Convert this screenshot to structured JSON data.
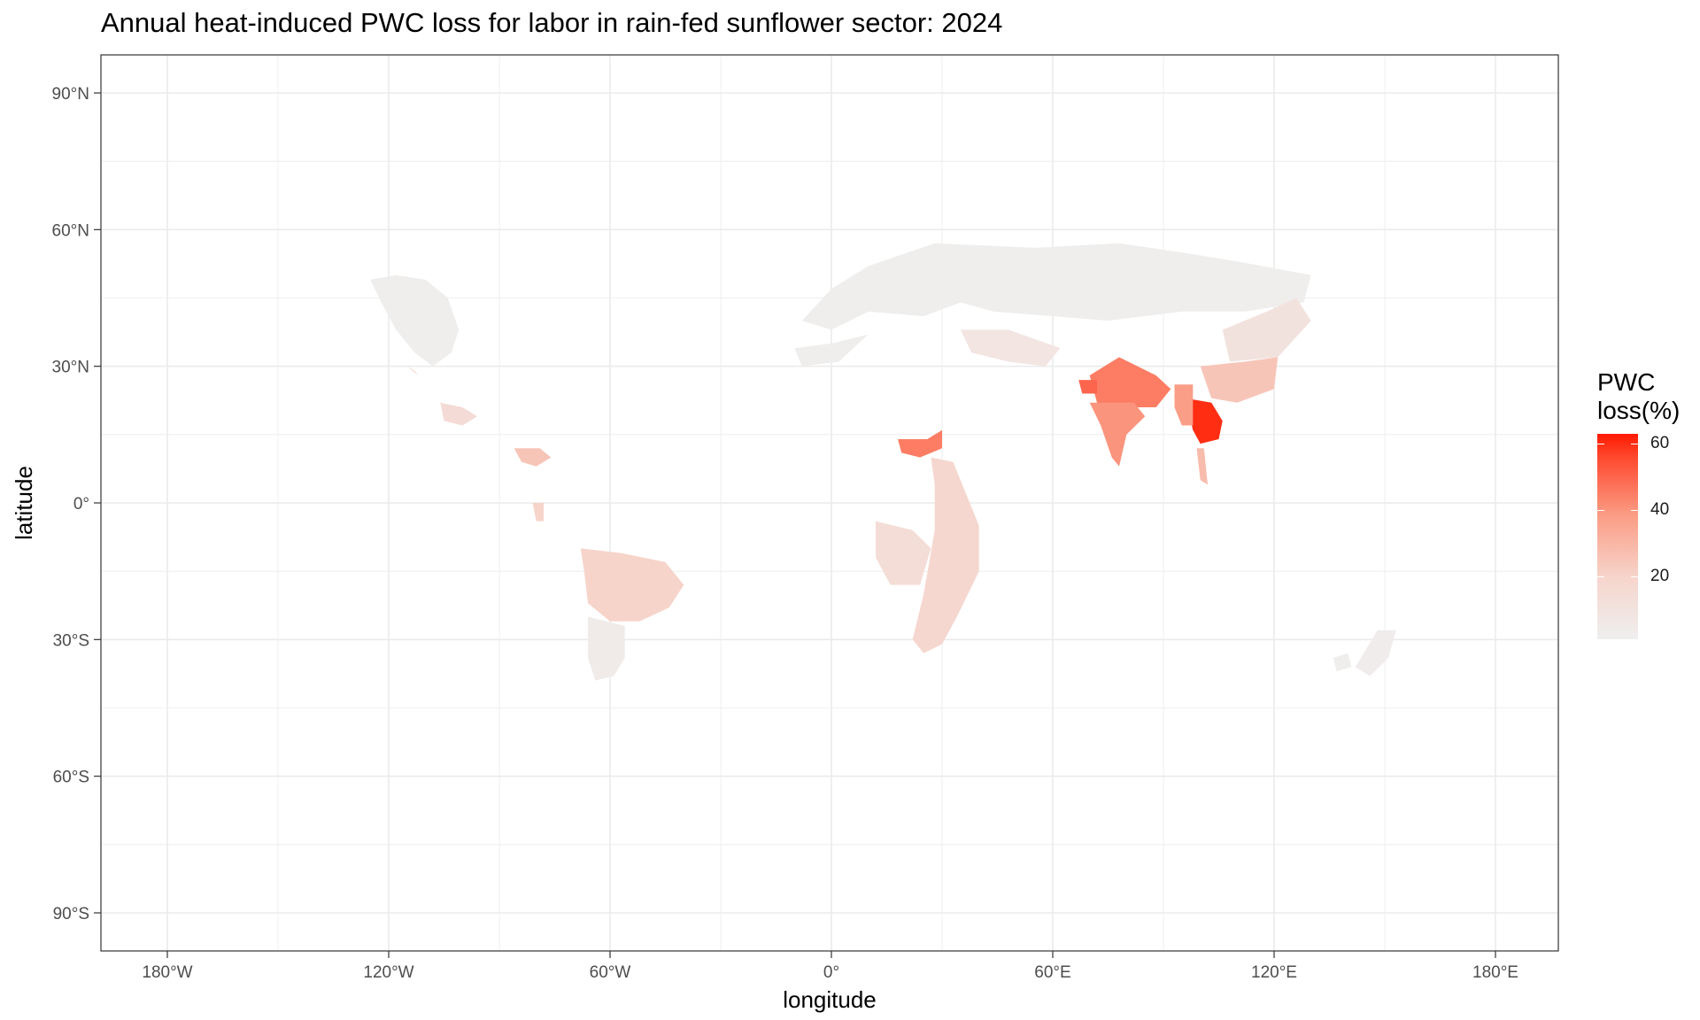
{
  "title": "Annual heat-induced PWC loss for labor in rain-fed sunflower sector: 2024",
  "x_axis": {
    "label": "longitude",
    "ticks": [
      {
        "value": -180,
        "label": "180°W"
      },
      {
        "value": -120,
        "label": "120°W"
      },
      {
        "value": -60,
        "label": "60°W"
      },
      {
        "value": 0,
        "label": "0°"
      },
      {
        "value": 60,
        "label": "60°E"
      },
      {
        "value": 120,
        "label": "120°E"
      },
      {
        "value": 180,
        "label": "180°E"
      }
    ]
  },
  "y_axis": {
    "label": "latitude",
    "ticks": [
      {
        "value": 90,
        "label": "90°N"
      },
      {
        "value": 60,
        "label": "60°N"
      },
      {
        "value": 30,
        "label": "30°N"
      },
      {
        "value": 0,
        "label": "0°"
      },
      {
        "value": -30,
        "label": "30°S"
      },
      {
        "value": -60,
        "label": "60°S"
      },
      {
        "value": -90,
        "label": "90°S"
      }
    ]
  },
  "legend": {
    "title_line1": "PWC",
    "title_line2": "loss(%)",
    "ticks": [
      {
        "value": 60,
        "label": "60"
      },
      {
        "value": 40,
        "label": "40"
      },
      {
        "value": 20,
        "label": "20"
      }
    ],
    "range": [
      1,
      63
    ]
  },
  "colors": {
    "low": "#efefef",
    "high": "#ff1a00",
    "grid": "#ebebeb",
    "panel_border": "#333333"
  },
  "regions": [
    {
      "name": "north-america-west",
      "value": 2,
      "points": [
        [
          -125,
          49
        ],
        [
          -118,
          50
        ],
        [
          -110,
          49
        ],
        [
          -104,
          45
        ],
        [
          -101,
          38
        ],
        [
          -103,
          33
        ],
        [
          -108,
          30
        ],
        [
          -113,
          33
        ],
        [
          -118,
          38
        ],
        [
          -122,
          44
        ]
      ]
    },
    {
      "name": "mexico",
      "value": 15,
      "points": [
        [
          -106,
          22
        ],
        [
          -100,
          21
        ],
        [
          -96,
          19
        ],
        [
          -100,
          17
        ],
        [
          -105,
          18
        ]
      ]
    },
    {
      "name": "baja-region",
      "value": 18,
      "points": [
        [
          -115,
          30
        ],
        [
          -112,
          28
        ],
        [
          -111,
          27
        ],
        [
          -113,
          29
        ]
      ]
    },
    {
      "name": "central-america",
      "value": 25,
      "points": [
        [
          -86,
          12
        ],
        [
          -79,
          12
        ],
        [
          -76,
          10
        ],
        [
          -80,
          8
        ],
        [
          -84,
          9
        ]
      ]
    },
    {
      "name": "ecuador-region",
      "value": 20,
      "points": [
        [
          -81,
          0
        ],
        [
          -78,
          0
        ],
        [
          -78,
          -4
        ],
        [
          -80,
          -4
        ]
      ]
    },
    {
      "name": "south-america-north",
      "value": 20,
      "points": [
        [
          -68,
          -10
        ],
        [
          -57,
          -11
        ],
        [
          -45,
          -13
        ],
        [
          -40,
          -18
        ],
        [
          -44,
          -23
        ],
        [
          -52,
          -26
        ],
        [
          -60,
          -26
        ],
        [
          -66,
          -22
        ],
        [
          -67,
          -15
        ]
      ]
    },
    {
      "name": "south-america-south",
      "value": 4,
      "points": [
        [
          -66,
          -25
        ],
        [
          -56,
          -27
        ],
        [
          -56,
          -34
        ],
        [
          -59,
          -38
        ],
        [
          -64,
          -39
        ],
        [
          -66,
          -34
        ]
      ]
    },
    {
      "name": "europe-russia",
      "value": 2,
      "points": [
        [
          -8,
          40
        ],
        [
          0,
          47
        ],
        [
          10,
          52
        ],
        [
          28,
          57
        ],
        [
          55,
          56
        ],
        [
          78,
          57
        ],
        [
          95,
          55
        ],
        [
          110,
          53
        ],
        [
          130,
          50
        ],
        [
          128,
          44
        ],
        [
          112,
          42
        ],
        [
          95,
          42
        ],
        [
          75,
          40
        ],
        [
          60,
          41
        ],
        [
          44,
          42
        ],
        [
          35,
          44
        ],
        [
          25,
          41
        ],
        [
          10,
          42
        ],
        [
          0,
          38
        ]
      ]
    },
    {
      "name": "middle-east",
      "value": 8,
      "points": [
        [
          35,
          38
        ],
        [
          48,
          38
        ],
        [
          62,
          34
        ],
        [
          58,
          30
        ],
        [
          48,
          31
        ],
        [
          38,
          33
        ]
      ]
    },
    {
      "name": "west-africa-sahel",
      "value": 45,
      "points": [
        [
          18,
          14
        ],
        [
          26,
          14
        ],
        [
          30,
          16
        ],
        [
          30,
          12
        ],
        [
          24,
          10
        ],
        [
          19,
          11
        ]
      ]
    },
    {
      "name": "east-africa",
      "value": 18,
      "points": [
        [
          27,
          10
        ],
        [
          33,
          9
        ],
        [
          36,
          3
        ],
        [
          40,
          -5
        ],
        [
          40,
          -15
        ],
        [
          34,
          -25
        ],
        [
          30,
          -31
        ],
        [
          25,
          -33
        ],
        [
          22,
          -30
        ],
        [
          25,
          -20
        ],
        [
          28,
          -6
        ],
        [
          28,
          4
        ]
      ]
    },
    {
      "name": "southern-central-africa",
      "value": 14,
      "points": [
        [
          12,
          -4
        ],
        [
          22,
          -6
        ],
        [
          27,
          -10
        ],
        [
          24,
          -18
        ],
        [
          16,
          -18
        ],
        [
          12,
          -12
        ]
      ]
    },
    {
      "name": "india-north",
      "value": 45,
      "points": [
        [
          70,
          28
        ],
        [
          78,
          32
        ],
        [
          88,
          28
        ],
        [
          92,
          25
        ],
        [
          88,
          21
        ],
        [
          80,
          21
        ],
        [
          72,
          22
        ]
      ]
    },
    {
      "name": "india-south",
      "value": 40,
      "points": [
        [
          70,
          22
        ],
        [
          82,
          22
        ],
        [
          85,
          19
        ],
        [
          80,
          15
        ],
        [
          78,
          8
        ],
        [
          76,
          10
        ],
        [
          73,
          17
        ]
      ]
    },
    {
      "name": "pakistan-patch",
      "value": 50,
      "points": [
        [
          67,
          27
        ],
        [
          72,
          27
        ],
        [
          72,
          24
        ],
        [
          68,
          24
        ]
      ]
    },
    {
      "name": "southeast-asia",
      "value": 60,
      "points": [
        [
          96,
          23
        ],
        [
          103,
          22
        ],
        [
          106,
          18
        ],
        [
          105,
          14
        ],
        [
          100,
          13
        ],
        [
          98,
          16
        ]
      ]
    },
    {
      "name": "myanmar",
      "value": 38,
      "points": [
        [
          93,
          26
        ],
        [
          98,
          26
        ],
        [
          98,
          17
        ],
        [
          95,
          17
        ],
        [
          93,
          21
        ]
      ]
    },
    {
      "name": "malay",
      "value": 28,
      "points": [
        [
          99,
          12
        ],
        [
          101,
          12
        ],
        [
          102,
          4
        ],
        [
          100,
          5
        ]
      ]
    },
    {
      "name": "china-south",
      "value": 25,
      "points": [
        [
          100,
          30
        ],
        [
          112,
          31
        ],
        [
          121,
          32
        ],
        [
          120,
          25
        ],
        [
          110,
          22
        ],
        [
          103,
          23
        ]
      ]
    },
    {
      "name": "china-east",
      "value": 10,
      "points": [
        [
          106,
          38
        ],
        [
          118,
          42
        ],
        [
          126,
          45
        ],
        [
          130,
          40
        ],
        [
          121,
          32
        ],
        [
          108,
          31
        ]
      ]
    },
    {
      "name": "australia-east",
      "value": 3,
      "points": [
        [
          142,
          -36
        ],
        [
          148,
          -28
        ],
        [
          153,
          -28
        ],
        [
          151,
          -34
        ],
        [
          146,
          -38
        ]
      ]
    },
    {
      "name": "australia-southwest",
      "value": 2,
      "points": [
        [
          136,
          -34
        ],
        [
          140,
          -33
        ],
        [
          141,
          -36
        ],
        [
          137,
          -37
        ]
      ]
    },
    {
      "name": "north-africa",
      "value": 2,
      "points": [
        [
          -10,
          34
        ],
        [
          0,
          35
        ],
        [
          10,
          37
        ],
        [
          2,
          31
        ],
        [
          -8,
          30
        ]
      ]
    }
  ]
}
